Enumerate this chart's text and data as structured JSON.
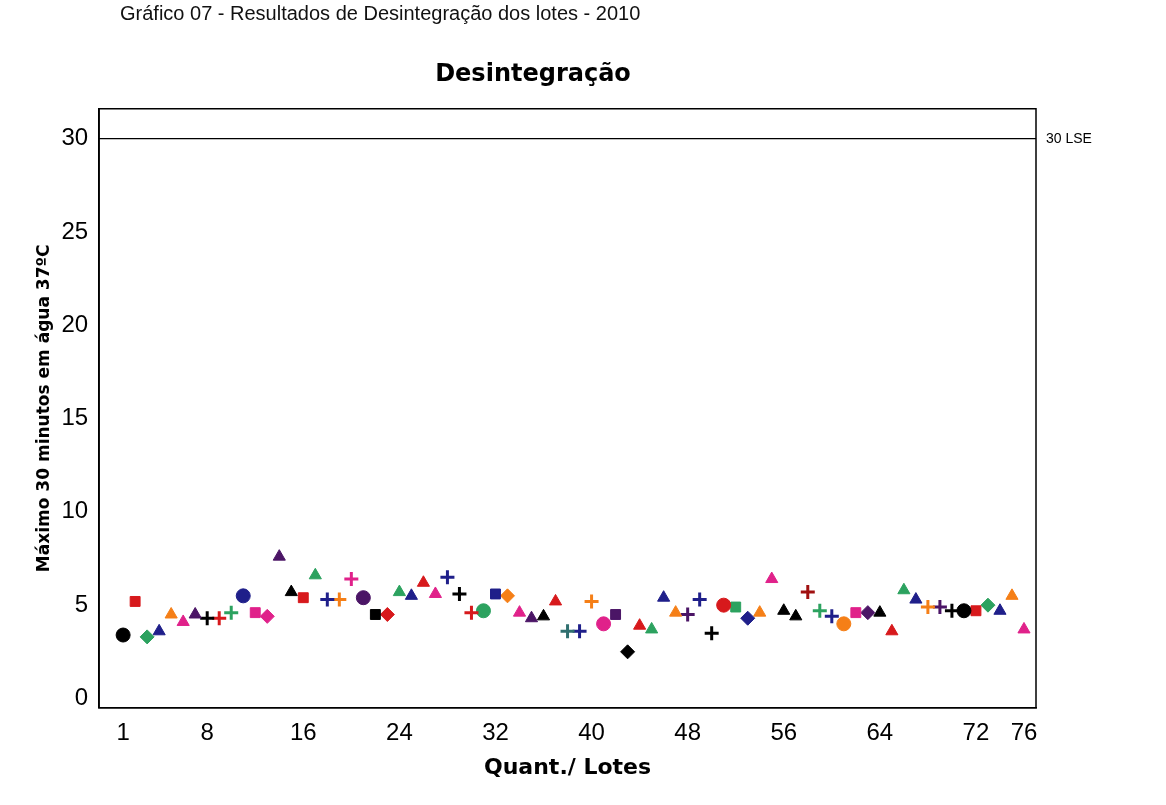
{
  "chart_data": {
    "type": "scatter",
    "title": "Desintegração",
    "xlabel": "Quant./ Lotes",
    "ylabel": "Máximo 30 minutos em água 37ºC",
    "annotations": [
      "Gráfico 07 - Resultados de Desintegração dos lotes - 2010"
    ],
    "xlim": [
      -1,
      77
    ],
    "xticks": [
      1,
      8,
      16,
      24,
      32,
      40,
      48,
      56,
      64,
      72,
      76
    ],
    "ylim": [
      -0.5,
      31.6
    ],
    "yticks": [
      0,
      5,
      10,
      15,
      20,
      25,
      30
    ],
    "grid": false,
    "legend": false,
    "ref_lines": [
      {
        "axis": "y",
        "value": 30,
        "label": "30 LSE",
        "color": "#000000"
      }
    ],
    "series": [
      {
        "x": [
          1
        ],
        "values": [
          3.4
        ],
        "color": "#000000",
        "marker": "circle"
      },
      {
        "x": [
          2
        ],
        "values": [
          5.2
        ],
        "color": "#d7191c",
        "marker": "square"
      },
      {
        "x": [
          3
        ],
        "values": [
          3.3
        ],
        "color": "#2ca25f",
        "marker": "diamond"
      },
      {
        "x": [
          4
        ],
        "values": [
          3.6
        ],
        "color": "#1f1f8a",
        "marker": "triangle"
      },
      {
        "x": [
          5
        ],
        "values": [
          4.5
        ],
        "color": "#f57f17",
        "marker": "triangle"
      },
      {
        "x": [
          6
        ],
        "values": [
          4.1
        ],
        "color": "#e0218a",
        "marker": "triangle"
      },
      {
        "x": [
          7
        ],
        "values": [
          4.5
        ],
        "color": "#4b1566",
        "marker": "triangle"
      },
      {
        "x": [
          8
        ],
        "values": [
          4.3
        ],
        "color": "#000000",
        "marker": "cross"
      },
      {
        "x": [
          9
        ],
        "values": [
          4.3
        ],
        "color": "#d7191c",
        "marker": "cross"
      },
      {
        "x": [
          10
        ],
        "values": [
          4.6
        ],
        "color": "#2ca25f",
        "marker": "cross"
      },
      {
        "x": [
          11
        ],
        "values": [
          5.5
        ],
        "color": "#1f1f8a",
        "marker": "circle"
      },
      {
        "x": [
          12
        ],
        "values": [
          4.6
        ],
        "color": "#e0218a",
        "marker": "square"
      },
      {
        "x": [
          13
        ],
        "values": [
          4.4
        ],
        "color": "#e0218a",
        "marker": "diamond"
      },
      {
        "x": [
          14
        ],
        "values": [
          7.6
        ],
        "color": "#4b1566",
        "marker": "triangle"
      },
      {
        "x": [
          15
        ],
        "values": [
          5.7
        ],
        "color": "#000000",
        "marker": "triangle"
      },
      {
        "x": [
          16
        ],
        "values": [
          5.4
        ],
        "color": "#d7191c",
        "marker": "square"
      },
      {
        "x": [
          17
        ],
        "values": [
          6.6
        ],
        "color": "#2ca25f",
        "marker": "triangle"
      },
      {
        "x": [
          18
        ],
        "values": [
          5.3
        ],
        "color": "#1f1f8a",
        "marker": "cross"
      },
      {
        "x": [
          19
        ],
        "values": [
          5.3
        ],
        "color": "#f57f17",
        "marker": "cross"
      },
      {
        "x": [
          20
        ],
        "values": [
          6.4
        ],
        "color": "#e0218a",
        "marker": "cross"
      },
      {
        "x": [
          21
        ],
        "values": [
          5.4
        ],
        "color": "#4b1566",
        "marker": "circle"
      },
      {
        "x": [
          22
        ],
        "values": [
          4.5
        ],
        "color": "#000000",
        "marker": "square"
      },
      {
        "x": [
          23
        ],
        "values": [
          4.5
        ],
        "color": "#d7191c",
        "marker": "diamond"
      },
      {
        "x": [
          24
        ],
        "values": [
          5.7
        ],
        "color": "#2ca25f",
        "marker": "triangle"
      },
      {
        "x": [
          25
        ],
        "values": [
          5.5
        ],
        "color": "#1f1f8a",
        "marker": "triangle"
      },
      {
        "x": [
          26
        ],
        "values": [
          6.2
        ],
        "color": "#d7191c",
        "marker": "triangle"
      },
      {
        "x": [
          27
        ],
        "values": [
          5.6
        ],
        "color": "#e0218a",
        "marker": "triangle"
      },
      {
        "x": [
          28
        ],
        "values": [
          6.5
        ],
        "color": "#1f1f8a",
        "marker": "cross"
      },
      {
        "x": [
          29
        ],
        "values": [
          5.6
        ],
        "color": "#000000",
        "marker": "cross"
      },
      {
        "x": [
          30
        ],
        "values": [
          4.6
        ],
        "color": "#d7191c",
        "marker": "cross"
      },
      {
        "x": [
          31
        ],
        "values": [
          4.7
        ],
        "color": "#2ca25f",
        "marker": "circle"
      },
      {
        "x": [
          32
        ],
        "values": [
          5.6
        ],
        "color": "#1f1f8a",
        "marker": "square"
      },
      {
        "x": [
          33
        ],
        "values": [
          5.5
        ],
        "color": "#f57f17",
        "marker": "diamond"
      },
      {
        "x": [
          34
        ],
        "values": [
          4.6
        ],
        "color": "#e0218a",
        "marker": "triangle"
      },
      {
        "x": [
          35
        ],
        "values": [
          4.3
        ],
        "color": "#4b1566",
        "marker": "triangle"
      },
      {
        "x": [
          36
        ],
        "values": [
          4.4
        ],
        "color": "#000000",
        "marker": "triangle"
      },
      {
        "x": [
          37
        ],
        "values": [
          5.2
        ],
        "color": "#d7191c",
        "marker": "triangle"
      },
      {
        "x": [
          38
        ],
        "values": [
          3.6
        ],
        "color": "#2f6f6f",
        "marker": "cross"
      },
      {
        "x": [
          39
        ],
        "values": [
          3.6
        ],
        "color": "#1f1f8a",
        "marker": "cross"
      },
      {
        "x": [
          40
        ],
        "values": [
          5.2
        ],
        "color": "#f57f17",
        "marker": "cross"
      },
      {
        "x": [
          41
        ],
        "values": [
          4.0
        ],
        "color": "#e0218a",
        "marker": "circle"
      },
      {
        "x": [
          42
        ],
        "values": [
          4.5
        ],
        "color": "#4b1566",
        "marker": "square"
      },
      {
        "x": [
          43
        ],
        "values": [
          2.5
        ],
        "color": "#000000",
        "marker": "diamond"
      },
      {
        "x": [
          44
        ],
        "values": [
          3.9
        ],
        "color": "#d7191c",
        "marker": "triangle"
      },
      {
        "x": [
          45
        ],
        "values": [
          3.7
        ],
        "color": "#2ca25f",
        "marker": "triangle"
      },
      {
        "x": [
          46
        ],
        "values": [
          5.4
        ],
        "color": "#1f1f8a",
        "marker": "triangle"
      },
      {
        "x": [
          47
        ],
        "values": [
          4.6
        ],
        "color": "#f57f17",
        "marker": "triangle"
      },
      {
        "x": [
          48
        ],
        "values": [
          4.5
        ],
        "color": "#4b1566",
        "marker": "cross"
      },
      {
        "x": [
          49
        ],
        "values": [
          5.3
        ],
        "color": "#1f1f8a",
        "marker": "cross"
      },
      {
        "x": [
          50
        ],
        "values": [
          3.5
        ],
        "color": "#000000",
        "marker": "cross"
      },
      {
        "x": [
          51
        ],
        "values": [
          5.0
        ],
        "color": "#d7191c",
        "marker": "circle"
      },
      {
        "x": [
          52
        ],
        "values": [
          4.9
        ],
        "color": "#2ca25f",
        "marker": "square"
      },
      {
        "x": [
          53
        ],
        "values": [
          4.3
        ],
        "color": "#1f1f8a",
        "marker": "diamond"
      },
      {
        "x": [
          54
        ],
        "values": [
          4.6
        ],
        "color": "#f57f17",
        "marker": "triangle"
      },
      {
        "x": [
          55
        ],
        "values": [
          6.4
        ],
        "color": "#e0218a",
        "marker": "triangle"
      },
      {
        "x": [
          56
        ],
        "values": [
          4.7
        ],
        "color": "#000000",
        "marker": "triangle"
      },
      {
        "x": [
          57
        ],
        "values": [
          4.4
        ],
        "color": "#000000",
        "marker": "triangle"
      },
      {
        "x": [
          58
        ],
        "values": [
          5.7
        ],
        "color": "#a01010",
        "marker": "cross"
      },
      {
        "x": [
          59
        ],
        "values": [
          4.7
        ],
        "color": "#2ca25f",
        "marker": "cross"
      },
      {
        "x": [
          60
        ],
        "values": [
          4.4
        ],
        "color": "#1f1f8a",
        "marker": "cross"
      },
      {
        "x": [
          61
        ],
        "values": [
          4.0
        ],
        "color": "#f57f17",
        "marker": "circle"
      },
      {
        "x": [
          62
        ],
        "values": [
          4.6
        ],
        "color": "#e0218a",
        "marker": "square"
      },
      {
        "x": [
          63
        ],
        "values": [
          4.6
        ],
        "color": "#4b1566",
        "marker": "diamond"
      },
      {
        "x": [
          64
        ],
        "values": [
          4.6
        ],
        "color": "#000000",
        "marker": "triangle"
      },
      {
        "x": [
          65
        ],
        "values": [
          3.6
        ],
        "color": "#d7191c",
        "marker": "triangle"
      },
      {
        "x": [
          66
        ],
        "values": [
          5.8
        ],
        "color": "#2ca25f",
        "marker": "triangle"
      },
      {
        "x": [
          67
        ],
        "values": [
          5.3
        ],
        "color": "#1f1f8a",
        "marker": "triangle"
      },
      {
        "x": [
          68
        ],
        "values": [
          4.9
        ],
        "color": "#f57f17",
        "marker": "cross"
      },
      {
        "x": [
          69
        ],
        "values": [
          4.9
        ],
        "color": "#4b1566",
        "marker": "cross"
      },
      {
        "x": [
          70
        ],
        "values": [
          4.7
        ],
        "color": "#000000",
        "marker": "cross"
      },
      {
        "x": [
          71
        ],
        "values": [
          4.7
        ],
        "color": "#000000",
        "marker": "circle"
      },
      {
        "x": [
          72
        ],
        "values": [
          4.7
        ],
        "color": "#d7191c",
        "marker": "square"
      },
      {
        "x": [
          73
        ],
        "values": [
          5.0
        ],
        "color": "#2ca25f",
        "marker": "diamond"
      },
      {
        "x": [
          74
        ],
        "values": [
          4.7
        ],
        "color": "#1f1f8a",
        "marker": "triangle"
      },
      {
        "x": [
          75
        ],
        "values": [
          5.5
        ],
        "color": "#f57f17",
        "marker": "triangle"
      },
      {
        "x": [
          76
        ],
        "values": [
          3.7
        ],
        "color": "#e0218a",
        "marker": "triangle"
      }
    ]
  }
}
